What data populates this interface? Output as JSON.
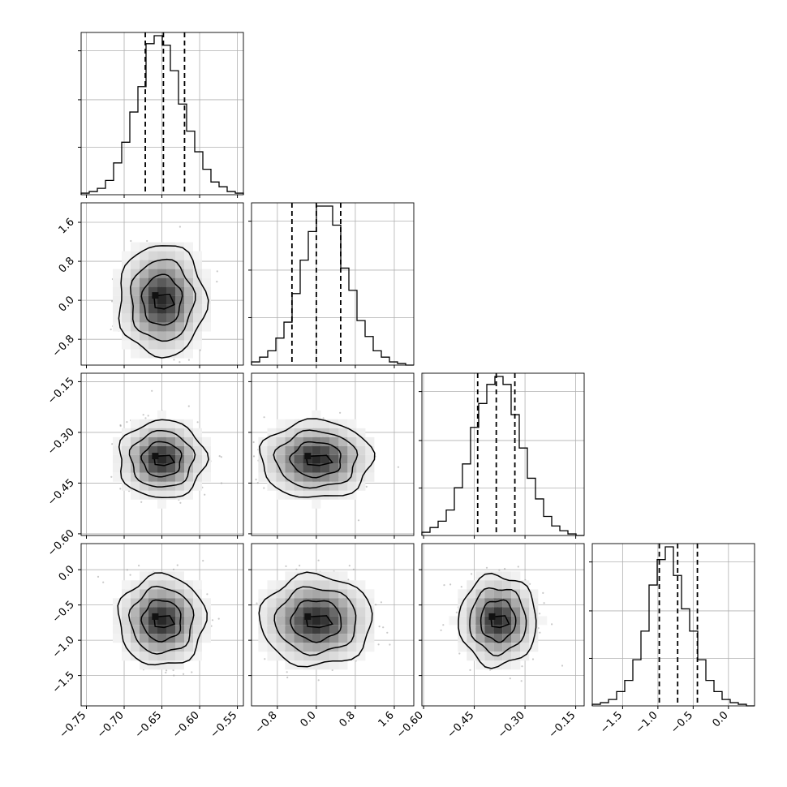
{
  "chart_data": {
    "type": "corner",
    "n_params": 4,
    "grid": true,
    "quantiles": [
      0.16,
      0.5,
      0.84
    ],
    "params": [
      {
        "mean": -0.65,
        "sd": 0.025,
        "range": [
          -0.757,
          -0.542
        ],
        "ticks": [
          -0.75,
          -0.7,
          -0.65,
          -0.6,
          -0.55
        ],
        "tick_labels": [
          "−0.75",
          "−0.70",
          "−0.65",
          "−0.60",
          "−0.55"
        ],
        "q16": -0.672,
        "q50": -0.648,
        "q84": -0.62
      },
      {
        "mean": 0.0,
        "sd": 0.5,
        "range": [
          -1.33,
          2.0
        ],
        "ticks": [
          -0.8,
          0.0,
          0.8,
          1.6
        ],
        "tick_labels": [
          "−0.8",
          "0.0",
          "0.8",
          "1.6"
        ],
        "q16": -0.5,
        "q50": 0.0,
        "q84": 0.5
      },
      {
        "mean": -0.38,
        "sd": 0.05,
        "range": [
          -0.605,
          -0.125
        ],
        "ticks": [
          -0.6,
          -0.45,
          -0.3,
          -0.15
        ],
        "tick_labels": [
          "−0.60",
          "−0.45",
          "−0.30",
          "−0.15"
        ],
        "q16": -0.44,
        "q50": -0.385,
        "q84": -0.33
      },
      {
        "mean": -0.72,
        "sd": 0.28,
        "range": [
          -1.93,
          0.37
        ],
        "ticks": [
          -1.5,
          -1.0,
          -0.5,
          0.0
        ],
        "tick_labels": [
          "−1.5",
          "−1.0",
          "−0.5",
          "0.0"
        ],
        "q16": -0.98,
        "q50": -0.72,
        "q84": -0.44
      }
    ],
    "hist_bins": 20,
    "hist_counts": [
      [
        0.01,
        0.02,
        0.04,
        0.09,
        0.2,
        0.33,
        0.52,
        0.68,
        0.95,
        1.0,
        0.94,
        0.78,
        0.57,
        0.4,
        0.27,
        0.16,
        0.08,
        0.05,
        0.02,
        0.01
      ],
      [
        0.02,
        0.05,
        0.09,
        0.17,
        0.27,
        0.45,
        0.66,
        0.84,
        1.0,
        1.0,
        0.88,
        0.61,
        0.47,
        0.28,
        0.18,
        0.09,
        0.05,
        0.02,
        0.01,
        0.0
      ],
      [
        0.02,
        0.05,
        0.09,
        0.16,
        0.3,
        0.45,
        0.68,
        0.83,
        0.95,
        1.0,
        0.95,
        0.76,
        0.55,
        0.36,
        0.23,
        0.12,
        0.06,
        0.03,
        0.01,
        0.0
      ],
      [
        0.01,
        0.02,
        0.04,
        0.09,
        0.16,
        0.29,
        0.47,
        0.76,
        0.92,
        1.0,
        0.82,
        0.61,
        0.47,
        0.29,
        0.16,
        0.09,
        0.04,
        0.02,
        0.01,
        0.0
      ]
    ]
  }
}
